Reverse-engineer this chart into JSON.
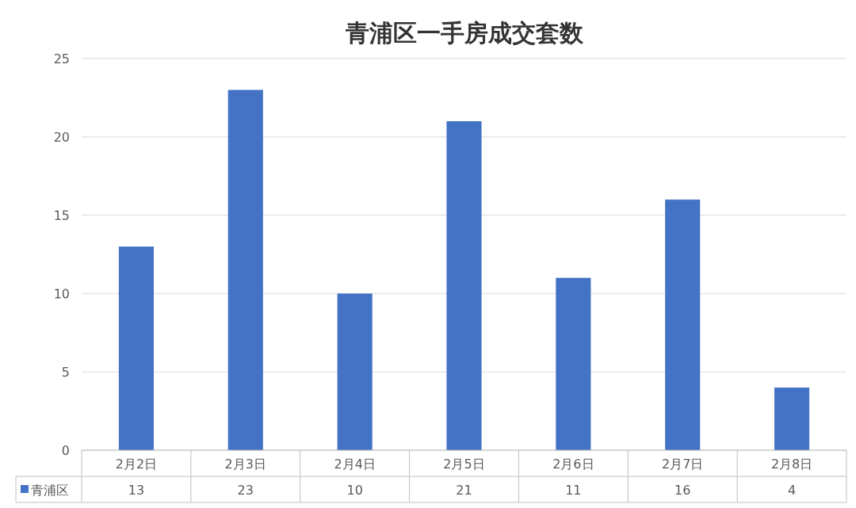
{
  "chart_data": {
    "type": "bar",
    "title": "青浦区一手房成交套数",
    "categories": [
      "2月2日",
      "2月3日",
      "2月4日",
      "2月5日",
      "2月6日",
      "2月7日",
      "2月8日"
    ],
    "series": [
      {
        "name": "青浦区",
        "color": "#4472c4",
        "values": [
          13,
          23,
          10,
          21,
          11,
          16,
          4
        ]
      }
    ],
    "ylim": [
      0,
      25
    ],
    "yticks": [
      0,
      5,
      10,
      15,
      20,
      25
    ],
    "grid": "y",
    "data_labels": true,
    "legend": "bottom"
  }
}
